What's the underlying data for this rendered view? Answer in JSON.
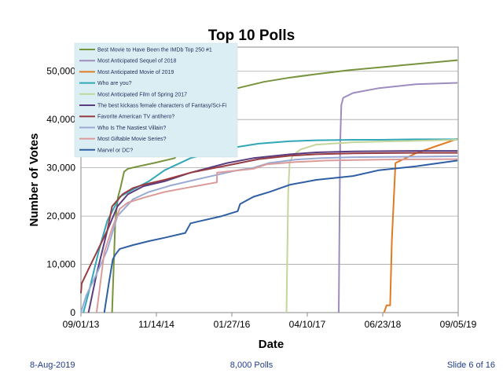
{
  "chart_data": {
    "type": "line",
    "title": "Top 10 Polls",
    "xlabel": "Date",
    "ylabel": "Number of Votes",
    "x_ticks": [
      "09/01/13",
      "11/14/14",
      "01/27/16",
      "04/10/17",
      "06/23/18",
      "09/05/19"
    ],
    "x_tick_days": [
      0,
      439,
      878,
      1317,
      1756,
      2195
    ],
    "y_ticks": [
      "0",
      "10,000",
      "20,000",
      "30,000",
      "40,000",
      "50,000"
    ],
    "y_tick_values": [
      0,
      10000,
      20000,
      30000,
      40000,
      50000
    ],
    "xlim": [
      "09/01/13",
      "09/05/19"
    ],
    "ylim": [
      0,
      55000
    ],
    "grid": "horizontal",
    "legend_position": "top-left",
    "series": [
      {
        "name": "Best Movie to Have Been the IMDb Top 250 #1",
        "color": "#77933c",
        "x": [
          "2014-03-01",
          "2014-03-20",
          "2014-04-05",
          "2014-04-20",
          "2014-05-10",
          "2014-06-01",
          "2014-08-01",
          "2014-11-01",
          "2015-03-01",
          "2015-06-01",
          "2015-07-01",
          "2015-10-01",
          "2016-03-01",
          "2016-08-01",
          "2017-01-01",
          "2017-06-01",
          "2017-12-01",
          "2018-07-01",
          "2019-01-01",
          "2019-09-01"
        ],
        "y": [
          0,
          19000,
          24000,
          26000,
          29200,
          29800,
          30300,
          31000,
          32000,
          38000,
          44000,
          45500,
          46500,
          47800,
          48700,
          49400,
          50200,
          50900,
          51500,
          52300
        ]
      },
      {
        "name": "Most Anticipated Sequel of 2018",
        "color": "#9e8cbf",
        "x": [
          "2017-10-10",
          "2017-10-18",
          "2017-10-25",
          "2017-11-05",
          "2018-01-01",
          "2018-06-01",
          "2019-01-01",
          "2019-09-01"
        ],
        "y": [
          0,
          35000,
          43000,
          44500,
          45500,
          46500,
          47300,
          47600
        ]
      },
      {
        "name": "Most Anticipated Movie of 2019",
        "color": "#e07b24",
        "x": [
          "2018-07-01",
          "2018-07-15",
          "2018-08-05",
          "2018-08-15",
          "2018-09-05",
          "2019-01-01",
          "2019-05-01",
          "2019-09-01"
        ],
        "y": [
          0,
          1500,
          1500,
          15000,
          31000,
          33000,
          34500,
          36000
        ]
      },
      {
        "name": "Who are you?",
        "color": "#31a7b7",
        "x": [
          "2013-09-15",
          "2013-10-15",
          "2013-12-15",
          "2014-02-01",
          "2014-04-15",
          "2014-07-01",
          "2014-10-01",
          "2015-01-01",
          "2015-06-01",
          "2016-01-01",
          "2016-07-01",
          "2017-01-01",
          "2017-06-01",
          "2018-01-01",
          "2018-06-01",
          "2019-01-01",
          "2019-09-01"
        ],
        "y": [
          0,
          4000,
          13000,
          19000,
          24000,
          25500,
          27200,
          29500,
          32000,
          34000,
          35000,
          35500,
          35700,
          35800,
          35800,
          35900,
          35900
        ]
      },
      {
        "name": "Most Anticipated Film of Spring 2017",
        "color": "#c3d69b",
        "x": [
          "2016-12-10",
          "2016-12-20",
          "2016-12-28",
          "2017-01-15",
          "2017-03-01",
          "2017-06-01",
          "2018-01-01",
          "2019-01-01",
          "2019-09-01"
        ],
        "y": [
          0,
          25000,
          31000,
          32500,
          33800,
          34800,
          35300,
          35600,
          35800
        ]
      },
      {
        "name": "The best kickass female characters of Fantasy/Sci-Fi",
        "color": "#5a3d80",
        "x": [
          "2013-10-15",
          "2013-12-01",
          "2014-02-01",
          "2014-04-01",
          "2014-06-01",
          "2014-09-01",
          "2015-01-01",
          "2015-06-01",
          "2016-01-01",
          "2016-06-01",
          "2017-01-01",
          "2017-06-01",
          "2018-01-01",
          "2019-01-01",
          "2019-09-01"
        ],
        "y": [
          0,
          8000,
          17000,
          22000,
          24500,
          26200,
          27200,
          29000,
          31000,
          32000,
          32800,
          33200,
          33400,
          33500,
          33500
        ]
      },
      {
        "name": "Favorite American TV antihero?",
        "color": "#963c42",
        "x": [
          "2013-09-01",
          "2013-09-05",
          "2013-10-15",
          "2013-12-15",
          "2014-02-01",
          "2014-03-01",
          "2014-05-01",
          "2014-07-01",
          "2014-09-01",
          "2015-01-01",
          "2015-06-01",
          "2016-01-01",
          "2016-07-01",
          "2017-01-01",
          "2017-06-01",
          "2018-01-01",
          "2019-01-01",
          "2019-09-01"
        ],
        "y": [
          4000,
          6000,
          9000,
          13500,
          17000,
          22000,
          24500,
          25800,
          26500,
          27500,
          29000,
          30500,
          31800,
          32500,
          32800,
          33000,
          33100,
          33100
        ]
      },
      {
        "name": "Who Is The Nastiest Villain?",
        "color": "#98aad4",
        "x": [
          "2013-09-01",
          "2013-10-01",
          "2013-12-01",
          "2014-02-01",
          "2014-04-01",
          "2014-07-01",
          "2014-10-01",
          "2015-02-01",
          "2015-08-01",
          "2016-03-01",
          "2016-06-01",
          "2016-09-01",
          "2017-02-01",
          "2017-07-01",
          "2018-01-01",
          "2019-01-01",
          "2019-09-01"
        ],
        "y": [
          0,
          3500,
          8000,
          13000,
          20000,
          23500,
          25000,
          26300,
          27800,
          29500,
          30000,
          31000,
          31700,
          32000,
          32200,
          32300,
          32400
        ]
      },
      {
        "name": "Most Giftable Movie Series?",
        "color": "#dc9b9b",
        "x": [
          "2013-12-01",
          "2014-01-15",
          "2014-03-01",
          "2014-04-15",
          "2014-06-01",
          "2014-09-01",
          "2015-01-01",
          "2015-06-01",
          "2015-11-01",
          "2015-11-02",
          "2016-06-01",
          "2016-08-15",
          "2017-02-01",
          "2017-08-01",
          "2018-06-01",
          "2019-09-01"
        ],
        "y": [
          0,
          12500,
          17500,
          21500,
          22800,
          23800,
          25000,
          26000,
          27000,
          29000,
          29800,
          30700,
          31200,
          31500,
          31700,
          31800
        ]
      },
      {
        "name": "Marvel or DC?",
        "color": "#2f5fa3",
        "x": [
          "2014-01-15",
          "2014-02-10",
          "2014-03-05",
          "2014-03-20",
          "2014-04-15",
          "2014-07-01",
          "2014-10-01",
          "2015-01-01",
          "2015-05-01",
          "2015-06-01",
          "2015-08-01",
          "2015-12-01",
          "2016-03-01",
          "2016-03-15",
          "2016-06-01",
          "2016-09-01",
          "2017-01-01",
          "2017-06-01",
          "2018-01-01",
          "2018-06-01",
          "2019-01-01",
          "2019-09-01"
        ],
        "y": [
          0,
          6000,
          11000,
          12000,
          13200,
          14000,
          14800,
          15500,
          16500,
          18500,
          19000,
          20000,
          21000,
          22500,
          24000,
          25000,
          26500,
          27500,
          28300,
          29500,
          30300,
          31500
        ]
      }
    ]
  },
  "footer": {
    "left": "8-Aug-2019",
    "center": "8,000 Polls",
    "right": "Slide 6 of 16"
  }
}
